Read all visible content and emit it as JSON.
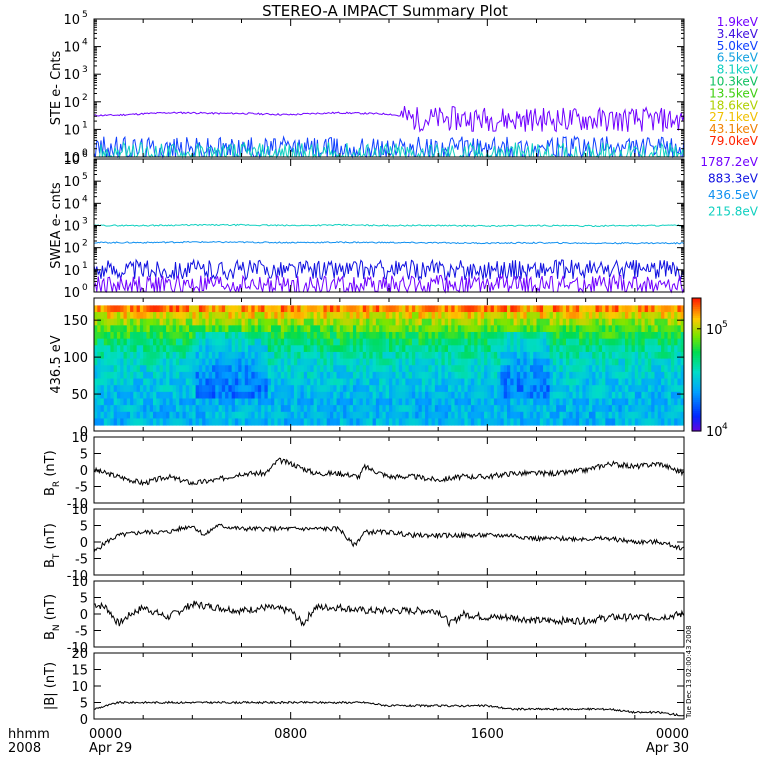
{
  "title": "STEREO-A IMPACT Summary Plot",
  "bottom": {
    "label_line1": "hhmm",
    "label_line2": "2008",
    "ticks": [
      "0000",
      "0800",
      "1600",
      "0000"
    ],
    "dates": [
      "Apr 29",
      "",
      "",
      "Apr 30"
    ]
  },
  "side_stamp": "Tue Dec 13 02:00:43 2008",
  "chart_data": [
    {
      "id": "ste",
      "type": "line",
      "ylabel": "STE e- Cnts",
      "yscale": "log",
      "ylim": [
        1,
        100000
      ],
      "ytick_exponents": [
        "0",
        "1",
        "2",
        "3",
        "4",
        "5"
      ],
      "xlim_hours": [
        0,
        24
      ],
      "legend": [
        {
          "name": "1.9keV",
          "color": "#7000ff"
        },
        {
          "name": "3.4keV",
          "color": "#4010e0"
        },
        {
          "name": "5.0keV",
          "color": "#1040ff"
        },
        {
          "name": "6.5keV",
          "color": "#10a0e0"
        },
        {
          "name": "8.1keV",
          "color": "#10d0c0"
        },
        {
          "name": "10.3keV",
          "color": "#10c060"
        },
        {
          "name": "13.5keV",
          "color": "#40d010"
        },
        {
          "name": "18.6keV",
          "color": "#b0d000"
        },
        {
          "name": "27.1keV",
          "color": "#f0c000"
        },
        {
          "name": "43.1keV",
          "color": "#f08000"
        },
        {
          "name": "79.0keV",
          "color": "#ff2000"
        }
      ],
      "series": [
        {
          "name": "1.9keV",
          "color": "#7000ff",
          "x": [
            0,
            1,
            2,
            3,
            4,
            5,
            6,
            7,
            8,
            9,
            10,
            11,
            12,
            13,
            14,
            15,
            16,
            17,
            18,
            19,
            20,
            21,
            22,
            23,
            24
          ],
          "y": [
            32,
            33,
            37,
            40,
            40,
            38,
            38,
            36,
            34,
            38,
            40,
            38,
            36,
            24,
            24,
            24,
            24,
            23,
            23,
            23,
            23,
            22,
            22,
            22,
            22
          ]
        },
        {
          "name": "5.0keV",
          "color": "#1040ff",
          "x": [
            0,
            2,
            4,
            6,
            8,
            10,
            12,
            14,
            16,
            18,
            20,
            22,
            24
          ],
          "y": [
            2,
            2,
            2,
            2,
            2,
            2,
            2,
            2,
            2,
            2,
            2,
            2,
            2
          ]
        },
        {
          "name": "8.1keV",
          "color": "#10d0c0",
          "x": [
            0,
            2,
            4,
            6,
            8,
            10,
            12,
            14,
            16,
            18,
            20,
            22,
            24
          ],
          "y": [
            1.2,
            1.2,
            1.2,
            1.2,
            1.2,
            1.2,
            1.2,
            1.2,
            1.2,
            1.2,
            1.2,
            1.2,
            1.2
          ]
        }
      ]
    },
    {
      "id": "swea",
      "type": "line",
      "ylabel": "SWEA e- cnts",
      "yscale": "log",
      "ylim": [
        1,
        1000000
      ],
      "ytick_exponents": [
        "0",
        "1",
        "2",
        "3",
        "4",
        "5",
        "6"
      ],
      "xlim_hours": [
        0,
        24
      ],
      "legend": [
        {
          "name": "1787.2eV",
          "color": "#7000ff"
        },
        {
          "name": "883.3eV",
          "color": "#1010e0"
        },
        {
          "name": "436.5eV",
          "color": "#1090f0"
        },
        {
          "name": "215.8eV",
          "color": "#10d0c0"
        }
      ],
      "series": [
        {
          "name": "215.8eV",
          "color": "#10d0c0",
          "x": [
            0,
            2,
            4,
            6,
            8,
            10,
            12,
            14,
            16,
            18,
            20,
            22,
            24
          ],
          "y": [
            1000,
            1000,
            1050,
            1050,
            1000,
            1050,
            1000,
            1000,
            950,
            1000,
            950,
            1000,
            1000
          ]
        },
        {
          "name": "436.5eV",
          "color": "#1090f0",
          "x": [
            0,
            2,
            4,
            6,
            8,
            10,
            12,
            14,
            16,
            18,
            20,
            22,
            24
          ],
          "y": [
            170,
            170,
            180,
            175,
            170,
            175,
            170,
            165,
            160,
            165,
            160,
            160,
            160
          ]
        },
        {
          "name": "883.3eV",
          "color": "#1010e0",
          "x": [
            0,
            2,
            4,
            6,
            8,
            10,
            12,
            14,
            16,
            18,
            20,
            22,
            24
          ],
          "y": [
            10,
            10,
            10,
            10,
            10,
            10,
            10,
            10,
            10,
            10,
            10,
            10,
            10
          ]
        },
        {
          "name": "1787.2eV",
          "color": "#7000ff",
          "x": [
            0,
            2,
            4,
            6,
            8,
            10,
            12,
            14,
            16,
            18,
            20,
            22,
            24
          ],
          "y": [
            2,
            2,
            2,
            2,
            2,
            2,
            2,
            2,
            2,
            2,
            2,
            2,
            2
          ]
        }
      ]
    },
    {
      "id": "pad",
      "type": "heatmap",
      "ylabel": "436.5 eV",
      "ylim": [
        0,
        180
      ],
      "yticks": [
        "0",
        "50",
        "100",
        "150"
      ],
      "xlim_hours": [
        0,
        24
      ],
      "colorbar": {
        "scale": "log",
        "labels": [
          "10",
          "10"
        ],
        "exponents": [
          "4",
          "5"
        ],
        "range": [
          10000,
          200000
        ]
      }
    },
    {
      "id": "br",
      "type": "line",
      "ylabel_main": "B",
      "ylabel_sub": "R",
      "ylabel_unit": " (nT)",
      "ylim": [
        -10,
        10
      ],
      "yticks": [
        "10",
        "5",
        "0",
        "-5",
        "-10"
      ],
      "xlim_hours": [
        0,
        24
      ],
      "series": [
        {
          "name": "",
          "x": [
            0,
            1,
            2,
            3,
            4,
            5,
            6,
            7,
            7.5,
            8,
            9,
            10,
            10.8,
            11,
            12,
            13,
            14,
            15,
            16,
            17,
            18,
            19,
            20,
            20.5,
            21,
            22,
            23,
            24
          ],
          "y": [
            0,
            -2,
            -4,
            -2,
            -4,
            -3,
            -1,
            -1,
            3,
            2,
            -1,
            -1,
            -2,
            1,
            -2,
            -2,
            -3,
            -2,
            -2,
            -1,
            -1,
            -1,
            0,
            1,
            2,
            1,
            2,
            -1
          ]
        }
      ]
    },
    {
      "id": "bt",
      "type": "line",
      "ylabel_main": "B",
      "ylabel_sub": "T",
      "ylabel_unit": " (nT)",
      "ylim": [
        -10,
        10
      ],
      "yticks": [
        "10",
        "5",
        "0",
        "-5",
        "-10"
      ],
      "xlim_hours": [
        0,
        24
      ],
      "series": [
        {
          "name": "",
          "x": [
            0,
            0.5,
            1,
            2,
            3,
            4,
            4.5,
            5,
            6,
            7,
            8,
            9,
            10,
            10.3,
            10.6,
            11,
            12,
            13,
            14,
            15,
            16,
            17,
            18,
            19,
            20,
            21,
            22,
            23,
            23.5,
            24
          ],
          "y": [
            -3,
            0,
            2,
            3,
            3,
            5,
            2,
            5,
            4,
            4,
            4,
            4,
            4,
            1,
            -1,
            3,
            3,
            2,
            2,
            2,
            2,
            2,
            1,
            1,
            1,
            1,
            0,
            0,
            -1,
            -2
          ]
        }
      ]
    },
    {
      "id": "bn",
      "type": "line",
      "ylabel_main": "B",
      "ylabel_sub": "N",
      "ylabel_unit": " (nT)",
      "ylim": [
        -10,
        10
      ],
      "yticks": [
        "10",
        "5",
        "0",
        "-5",
        "-10"
      ],
      "xlim_hours": [
        0,
        24
      ],
      "series": [
        {
          "name": "",
          "x": [
            0,
            0.5,
            1,
            1.5,
            2,
            3,
            4,
            5,
            6,
            7,
            8,
            8.5,
            9,
            10,
            11,
            12,
            13,
            14,
            14.5,
            15,
            16,
            17,
            18,
            19,
            20,
            21,
            22,
            23,
            24
          ],
          "y": [
            3,
            2,
            -3,
            0,
            2,
            -1,
            3,
            2,
            1,
            2,
            1,
            -3,
            2,
            2,
            1,
            1,
            1,
            1,
            -3,
            0,
            -1,
            -1,
            -2,
            -2,
            -2,
            -1,
            -1,
            -1,
            0
          ]
        }
      ]
    },
    {
      "id": "bmag",
      "type": "line",
      "ylabel": "|B| (nT)",
      "ylim": [
        0,
        20
      ],
      "yticks": [
        "20",
        "15",
        "10",
        "5",
        "0"
      ],
      "xlim_hours": [
        0,
        24
      ],
      "series": [
        {
          "name": "",
          "x": [
            0,
            1,
            2,
            3,
            4,
            5,
            6,
            7,
            8,
            9,
            10,
            11,
            12,
            13,
            14,
            15,
            16,
            17,
            18,
            19,
            20,
            21,
            22,
            23,
            24
          ],
          "y": [
            3,
            5,
            5,
            5,
            5,
            5,
            5,
            5,
            5,
            5,
            5,
            5,
            4,
            4,
            4,
            4,
            4,
            3,
            3,
            3,
            3,
            3,
            2,
            2,
            1
          ]
        }
      ]
    }
  ]
}
